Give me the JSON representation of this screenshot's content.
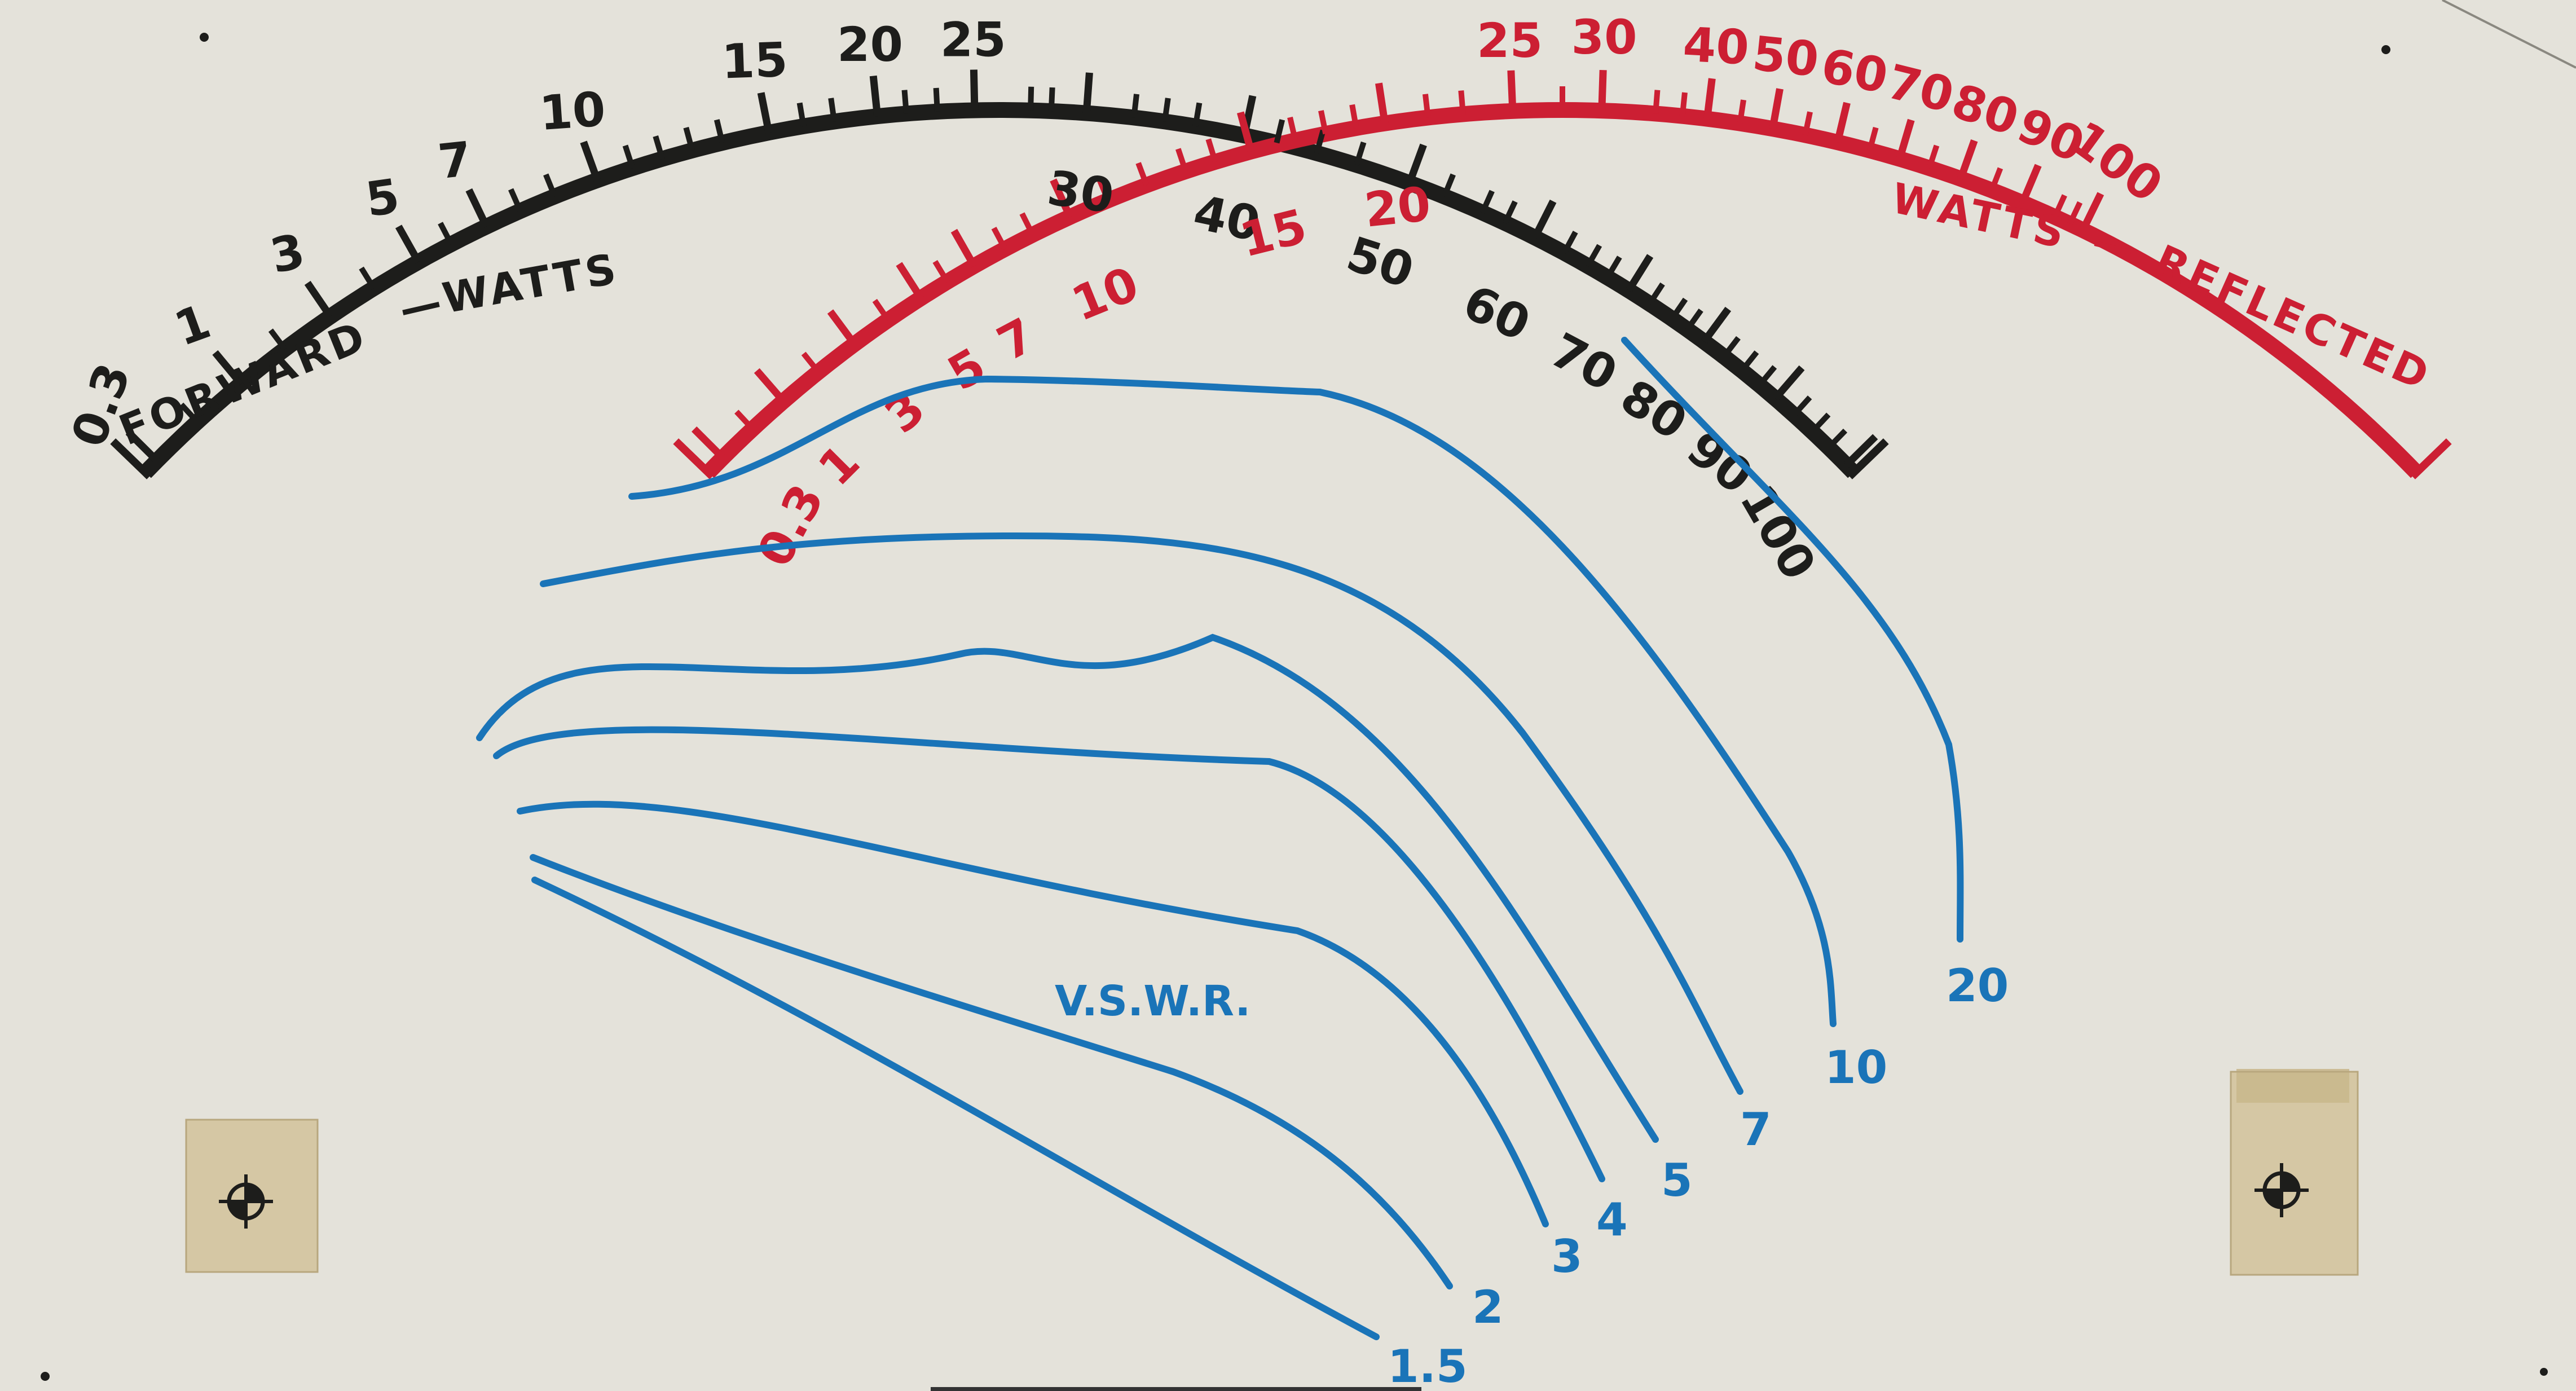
{
  "forward_scale": {
    "title": "FORWARD - WATTS",
    "title_left": "FORWARD",
    "title_right": "WATTS",
    "ticks": [
      "0.3",
      "1",
      "3",
      "5",
      "7",
      "10",
      "15",
      "20",
      "25",
      "30",
      "40",
      "50",
      "60",
      "70",
      "80",
      "90",
      "100"
    ],
    "color": "#1d1d1b"
  },
  "reflected_scale": {
    "title": "WATTS - REFLECTED",
    "title_left": "WATTS",
    "title_right": "REFLECTED",
    "ticks": [
      "0.3",
      "1",
      "3",
      "5",
      "7",
      "10",
      "15",
      "20",
      "25",
      "30",
      "40",
      "50",
      "60",
      "70",
      "80",
      "90",
      "100"
    ],
    "color": "#cc1f33"
  },
  "vswr": {
    "label": "V.S.W.R.",
    "curves": [
      "1.5",
      "2",
      "3",
      "4",
      "5",
      "7",
      "10",
      "20"
    ],
    "color": "#1a74b8"
  }
}
